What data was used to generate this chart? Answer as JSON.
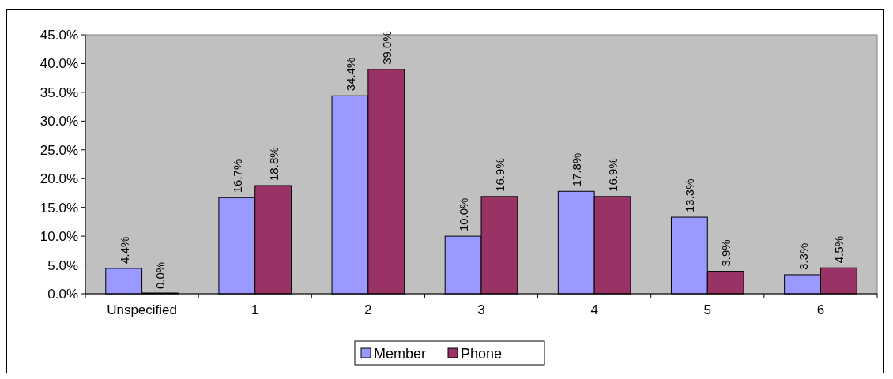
{
  "chart_data": {
    "type": "bar",
    "categories": [
      "Unspecified",
      "1",
      "2",
      "3",
      "4",
      "5",
      "6"
    ],
    "series": [
      {
        "name": "Member",
        "color": "#9999ff",
        "values": [
          4.4,
          16.7,
          34.4,
          10.0,
          17.8,
          13.3,
          3.3
        ],
        "value_labels": [
          "4.4%",
          "16.7%",
          "34.4%",
          "10.0%",
          "17.8%",
          "13.3%",
          "3.3%"
        ]
      },
      {
        "name": "Phone",
        "color": "#993366",
        "values": [
          0.0,
          18.8,
          39.0,
          16.9,
          16.9,
          3.9,
          4.5
        ],
        "value_labels": [
          "0.0%",
          "18.8%",
          "39.0%",
          "16.9%",
          "16.9%",
          "3.9%",
          "4.5%"
        ]
      }
    ],
    "ylim": [
      0,
      45
    ],
    "yticks": [
      {
        "value": 0,
        "label": "0.0%"
      },
      {
        "value": 5,
        "label": "5.0%"
      },
      {
        "value": 10,
        "label": "10.0%"
      },
      {
        "value": 15,
        "label": "15.0%"
      },
      {
        "value": 20,
        "label": "20.0%"
      },
      {
        "value": 25,
        "label": "25.0%"
      },
      {
        "value": 30,
        "label": "30.0%"
      },
      {
        "value": 35,
        "label": "35.0%"
      },
      {
        "value": 40,
        "label": "40.0%"
      },
      {
        "value": 45,
        "label": "45.0%"
      }
    ],
    "grid": false,
    "legend": "bottom"
  }
}
